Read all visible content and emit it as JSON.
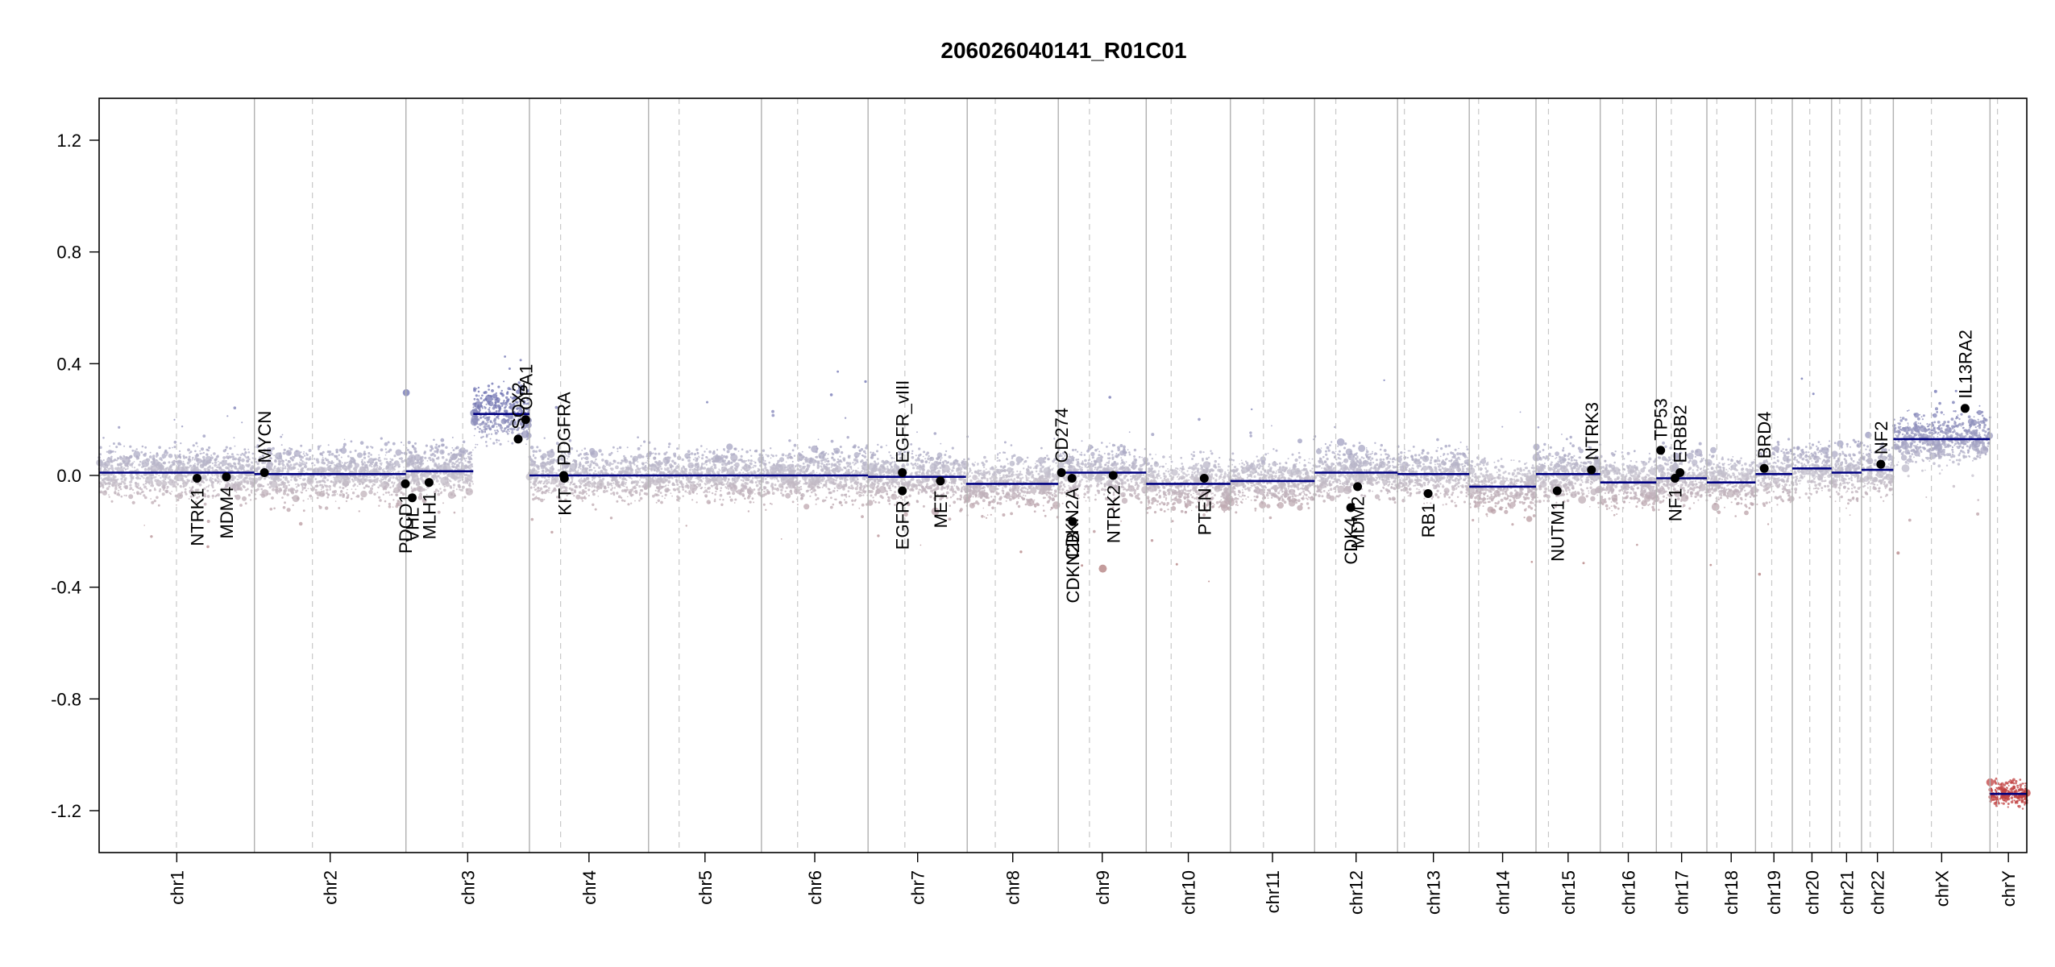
{
  "chart_data": {
    "type": "scatter",
    "title": "206026040141_R01C01",
    "xlabel": "",
    "ylabel": "",
    "ylim": [
      -1.35,
      1.35
    ],
    "y_ticks": [
      "1.2",
      "0.8",
      "0.4",
      "0.0",
      "-0.4",
      "-0.8",
      "-1.2"
    ],
    "y_tick_values": [
      1.2,
      0.8,
      0.4,
      0.0,
      -0.4,
      -0.8,
      -1.2
    ],
    "x_unit": "Mb (cumulative genome position)",
    "grid": false,
    "colors": {
      "gain": "#6b6fb0",
      "loss": "#b07b7b",
      "neutral": "#c4c0cc",
      "segment": "#000080",
      "gene": "#000000",
      "boundary": "#b0b0b0"
    },
    "chromosomes": [
      {
        "name": "chr1",
        "start": 0,
        "length": 249
      },
      {
        "name": "chr2",
        "start": 249,
        "length": 243
      },
      {
        "name": "chr3",
        "start": 492,
        "length": 198
      },
      {
        "name": "chr4",
        "start": 690,
        "length": 191
      },
      {
        "name": "chr5",
        "start": 881,
        "length": 181
      },
      {
        "name": "chr6",
        "start": 1062,
        "length": 171
      },
      {
        "name": "chr7",
        "start": 1233,
        "length": 159
      },
      {
        "name": "chr8",
        "start": 1392,
        "length": 146
      },
      {
        "name": "chr9",
        "start": 1538,
        "length": 141
      },
      {
        "name": "chr10",
        "start": 1679,
        "length": 135
      },
      {
        "name": "chr11",
        "start": 1814,
        "length": 135
      },
      {
        "name": "chr12",
        "start": 1949,
        "length": 133
      },
      {
        "name": "chr13",
        "start": 2082,
        "length": 115
      },
      {
        "name": "chr14",
        "start": 2197,
        "length": 107
      },
      {
        "name": "chr15",
        "start": 2304,
        "length": 103
      },
      {
        "name": "chr16",
        "start": 2407,
        "length": 90
      },
      {
        "name": "chr17",
        "start": 2497,
        "length": 81
      },
      {
        "name": "chr18",
        "start": 2578,
        "length": 78
      },
      {
        "name": "chr19",
        "start": 2656,
        "length": 59
      },
      {
        "name": "chr20",
        "start": 2715,
        "length": 63
      },
      {
        "name": "chr21",
        "start": 2778,
        "length": 48
      },
      {
        "name": "chr22",
        "start": 2826,
        "length": 51
      },
      {
        "name": "chrX",
        "start": 2877,
        "length": 155
      },
      {
        "name": "chrY",
        "start": 3032,
        "length": 59
      }
    ],
    "centromeres": [
      124,
      342,
      583,
      740,
      930,
      1120,
      1292,
      1437,
      1588,
      1719,
      1867,
      1983,
      2093,
      2212,
      2324,
      2443,
      2521,
      2594,
      2682,
      2743,
      2791,
      2840,
      2938,
      3044
    ],
    "segments": [
      {
        "x0": 0,
        "x1": 249,
        "y": 0.01
      },
      {
        "x0": 249,
        "x1": 492,
        "y": 0.005
      },
      {
        "x0": 492,
        "x1": 600,
        "y": 0.015
      },
      {
        "x0": 600,
        "x1": 690,
        "y": 0.22
      },
      {
        "x0": 690,
        "x1": 1233,
        "y": 0.0
      },
      {
        "x0": 1233,
        "x1": 1390,
        "y": -0.005
      },
      {
        "x0": 1390,
        "x1": 1538,
        "y": -0.03
      },
      {
        "x0": 1538,
        "x1": 1679,
        "y": 0.01
      },
      {
        "x0": 1679,
        "x1": 1814,
        "y": -0.03
      },
      {
        "x0": 1814,
        "x1": 1949,
        "y": -0.02
      },
      {
        "x0": 1949,
        "x1": 2082,
        "y": 0.01
      },
      {
        "x0": 2082,
        "x1": 2197,
        "y": 0.005
      },
      {
        "x0": 2197,
        "x1": 2304,
        "y": -0.04
      },
      {
        "x0": 2304,
        "x1": 2407,
        "y": 0.005
      },
      {
        "x0": 2407,
        "x1": 2497,
        "y": -0.025
      },
      {
        "x0": 2497,
        "x1": 2578,
        "y": -0.01
      },
      {
        "x0": 2578,
        "x1": 2656,
        "y": -0.025
      },
      {
        "x0": 2656,
        "x1": 2715,
        "y": 0.005
      },
      {
        "x0": 2715,
        "x1": 2778,
        "y": 0.025
      },
      {
        "x0": 2778,
        "x1": 2826,
        "y": 0.01
      },
      {
        "x0": 2826,
        "x1": 2877,
        "y": 0.02
      },
      {
        "x0": 2877,
        "x1": 3032,
        "y": 0.13
      },
      {
        "x0": 3032,
        "x1": 3091,
        "y": -1.14
      }
    ],
    "genes": [
      {
        "name": "NTRK1",
        "x": 157,
        "y": -0.01,
        "pos": "below"
      },
      {
        "name": "MDM4",
        "x": 204,
        "y": -0.005,
        "pos": "below"
      },
      {
        "name": "MYCN",
        "x": 265,
        "y": 0.01,
        "pos": "above"
      },
      {
        "name": "PDCD1",
        "x": 491,
        "y": -0.03,
        "pos": "below"
      },
      {
        "name": "VHL",
        "x": 502,
        "y": -0.08,
        "pos": "below"
      },
      {
        "name": "MLH1",
        "x": 529,
        "y": -0.025,
        "pos": "below"
      },
      {
        "name": "SOX2",
        "x": 672,
        "y": 0.13,
        "pos": "above"
      },
      {
        "name": "OPA1",
        "x": 684,
        "y": 0.2,
        "pos": "above"
      },
      {
        "name": "PDGFRA",
        "x": 745,
        "y": 0.0,
        "pos": "above"
      },
      {
        "name": "KIT",
        "x": 746,
        "y": -0.01,
        "pos": "below"
      },
      {
        "name": "EGFR_vIII",
        "x": 1288,
        "y": 0.01,
        "pos": "above"
      },
      {
        "name": "EGFR",
        "x": 1288,
        "y": -0.055,
        "pos": "below"
      },
      {
        "name": "MET",
        "x": 1349,
        "y": -0.02,
        "pos": "below"
      },
      {
        "name": "CD274",
        "x": 1543,
        "y": 0.01,
        "pos": "above"
      },
      {
        "name": "CDKN2A",
        "x": 1560,
        "y": -0.01,
        "pos": "below"
      },
      {
        "name": "CDKN2B",
        "x": 1561,
        "y": -0.165,
        "pos": "below"
      },
      {
        "name": "NTRK2",
        "x": 1626,
        "y": 0.0,
        "pos": "below"
      },
      {
        "name": "PTEN",
        "x": 1772,
        "y": -0.01,
        "pos": "below"
      },
      {
        "name": "CDK4",
        "x": 2007,
        "y": -0.115,
        "pos": "below"
      },
      {
        "name": "MDM2",
        "x": 2018,
        "y": -0.04,
        "pos": "below"
      },
      {
        "name": "RB1",
        "x": 2131,
        "y": -0.065,
        "pos": "below"
      },
      {
        "name": "NUTM1",
        "x": 2338,
        "y": -0.055,
        "pos": "below"
      },
      {
        "name": "NTRK3",
        "x": 2393,
        "y": 0.02,
        "pos": "above"
      },
      {
        "name": "TP53",
        "x": 2504,
        "y": 0.09,
        "pos": "above"
      },
      {
        "name": "ERBB2",
        "x": 2535,
        "y": 0.01,
        "pos": "above"
      },
      {
        "name": "NF1",
        "x": 2527,
        "y": -0.01,
        "pos": "below"
      },
      {
        "name": "BRD4",
        "x": 2670,
        "y": 0.025,
        "pos": "above"
      },
      {
        "name": "NF2",
        "x": 2857,
        "y": 0.04,
        "pos": "above"
      },
      {
        "name": "IL13RA2",
        "x": 2992,
        "y": 0.24,
        "pos": "above"
      }
    ]
  }
}
